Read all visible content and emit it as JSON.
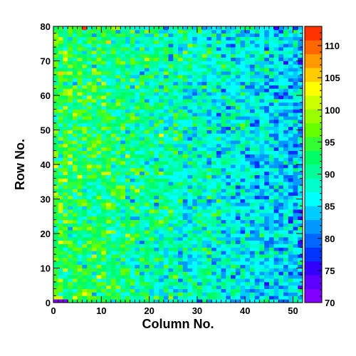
{
  "chart_data": {
    "type": "heatmap",
    "title": "",
    "xlabel": "Column No.",
    "ylabel": "Row No.",
    "x_range": [
      0,
      52
    ],
    "y_range": [
      0,
      80
    ],
    "x_ticks": [
      "0",
      "10",
      "20",
      "30",
      "40",
      "50"
    ],
    "y_ticks": [
      "0",
      "10",
      "20",
      "30",
      "40",
      "50",
      "60",
      "70",
      "80"
    ],
    "n_columns": 52,
    "n_rows": 80,
    "z_range": [
      70,
      113
    ],
    "colorbar_ticks": [
      "70",
      "75",
      "80",
      "85",
      "90",
      "95",
      "100",
      "105",
      "110"
    ],
    "colormap": [
      "#7f00ff",
      "#5d00ff",
      "#3300ff",
      "#0033ff",
      "#0066ff",
      "#0099ff",
      "#00ccff",
      "#00ffff",
      "#00ffcc",
      "#00ff99",
      "#00ff66",
      "#33ff33",
      "#66ff00",
      "#99ff00",
      "#ccff00",
      "#ffff00",
      "#ffcc00",
      "#ff9900",
      "#ff6600",
      "#ff3300"
    ],
    "trend": {
      "left_edge_mean": 94,
      "right_edge_mean": 84,
      "noise_amplitude": 5
    },
    "notable_cells": [
      {
        "col": 0,
        "row": 0,
        "value": 70
      },
      {
        "col": 1,
        "row": 0,
        "value": 71
      },
      {
        "col": 2,
        "row": 0,
        "value": 72
      },
      {
        "col": 6,
        "row": 79,
        "value": 111
      },
      {
        "col": 11,
        "row": 75,
        "value": 105
      },
      {
        "col": 4,
        "row": 1,
        "value": 103
      },
      {
        "col": 22,
        "row": 48,
        "value": 104
      }
    ],
    "legend": "colorbar-right",
    "grid": false
  }
}
